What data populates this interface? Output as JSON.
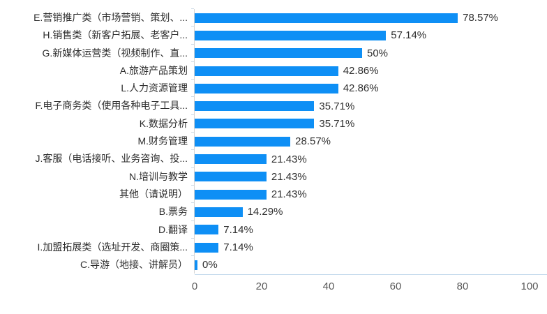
{
  "chart": {
    "background_color": "#ffffff",
    "bar_color": "#0e8ff5",
    "x_axis_line_color": "#c3d9ec",
    "y_axis_line_color": "#d3d3d3",
    "category_label_color": "#2d2d2d",
    "value_label_color": "#303030",
    "tick_label_color": "#585858"
  },
  "chart_data": {
    "type": "bar",
    "orientation": "horizontal",
    "title": "",
    "xlabel": "",
    "ylabel": "",
    "xlim": [
      0,
      100
    ],
    "x_tick_labels": [
      "0",
      "20",
      "40",
      "60",
      "80",
      "100"
    ],
    "x_tick_values": [
      0,
      20,
      40,
      60,
      80,
      100
    ],
    "grid": false,
    "legend": false,
    "categories": [
      "E.营销推广类（市场营销、策划、...",
      "H.销售类（新客户拓展、老客户...",
      "G.新媒体运营类（视频制作、直...",
      "A.旅游产品策划",
      "L.人力资源管理",
      "F.电子商务类（使用各种电子工具...",
      "K.数据分析",
      "M.财务管理",
      "J.客服（电话接听、业务咨询、投...",
      "N.培训与教学",
      "其他（请说明）",
      "B.票务",
      "D.翻译",
      "I.加盟拓展类（选址开发、商圈策...",
      "C.导游（地接、讲解员）"
    ],
    "values": [
      78.57,
      57.14,
      50,
      42.86,
      42.86,
      35.71,
      35.71,
      28.57,
      21.43,
      21.43,
      21.43,
      14.29,
      7.14,
      7.14,
      0
    ],
    "value_labels": [
      "78.57%",
      "57.14%",
      "50%",
      "42.86%",
      "42.86%",
      "35.71%",
      "35.71%",
      "28.57%",
      "21.43%",
      "21.43%",
      "21.43%",
      "14.29%",
      "7.14%",
      "7.14%",
      "0%"
    ]
  }
}
